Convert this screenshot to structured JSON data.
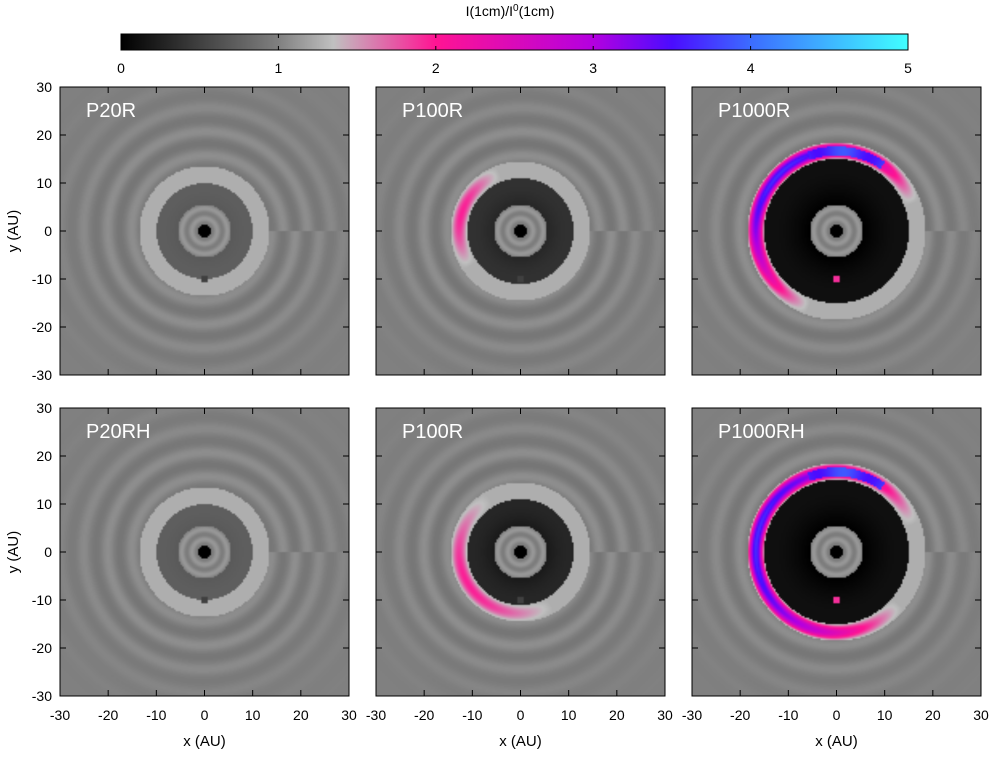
{
  "figure": {
    "colorbar": {
      "title": "I(1cm)/I",
      "title_sup": "0",
      "title_suffix": "(1cm)",
      "ticks": [
        "0",
        "1",
        "2",
        "3",
        "4",
        "5"
      ],
      "range": [
        0,
        5
      ],
      "stops": [
        {
          "v": 0,
          "color": "#000000"
        },
        {
          "v": 1,
          "color": "#808080"
        },
        {
          "v": 1.35,
          "color": "#c0c0c0"
        },
        {
          "v": 2,
          "color": "#ff1493"
        },
        {
          "v": 3,
          "color": "#b400e0"
        },
        {
          "v": 3.5,
          "color": "#4b0cff"
        },
        {
          "v": 4,
          "color": "#3c6cff"
        },
        {
          "v": 5,
          "color": "#40ffff"
        }
      ]
    },
    "axes": {
      "xlabel": "x (AU)",
      "ylabel": "y (AU)",
      "xlim": [
        -30,
        30
      ],
      "ylim": [
        -30,
        30
      ],
      "xticks": [
        "-30",
        "-20",
        "-10",
        "0",
        "10",
        "20",
        "30"
      ],
      "yticks": [
        "30",
        "20",
        "10",
        "0",
        "-10",
        "-20",
        "-30"
      ]
    }
  },
  "chart_data": [
    {
      "type": "heatmap",
      "title": "P20R",
      "xlabel": "",
      "ylabel": "y (AU)",
      "xlim": [
        -30,
        30
      ],
      "ylim": [
        -30,
        30
      ],
      "features": {
        "gap_outer_au": 10,
        "gap_depth": 0.7,
        "arc_max_ratio": 1.2,
        "arc_span_deg": [
          0,
          0
        ],
        "blue_patch": false,
        "planet_y_au": -10
      }
    },
    {
      "type": "heatmap",
      "title": "P100R",
      "xlabel": "",
      "ylabel": "",
      "xlim": [
        -30,
        30
      ],
      "ylim": [
        -30,
        30
      ],
      "features": {
        "gap_outer_au": 11,
        "gap_depth": 0.3,
        "arc_max_ratio": 2.0,
        "arc_span_deg": [
          110,
          215
        ],
        "blue_patch": false,
        "planet_y_au": -10
      }
    },
    {
      "type": "heatmap",
      "title": "P1000R",
      "xlabel": "",
      "ylabel": "",
      "xlim": [
        -30,
        30
      ],
      "ylim": [
        -30,
        30
      ],
      "features": {
        "gap_outer_au": 15,
        "gap_depth": 0.0,
        "arc_max_ratio": 3.8,
        "arc_span_deg": [
          20,
          250
        ],
        "blue_patch": true,
        "planet_y_au": -10
      }
    },
    {
      "type": "heatmap",
      "title": "P20RH",
      "xlabel": "x (AU)",
      "ylabel": "y (AU)",
      "xlim": [
        -30,
        30
      ],
      "ylim": [
        -30,
        30
      ],
      "features": {
        "gap_outer_au": 10,
        "gap_depth": 0.7,
        "arc_max_ratio": 1.2,
        "arc_span_deg": [
          0,
          0
        ],
        "blue_patch": false,
        "planet_y_au": -10
      }
    },
    {
      "type": "heatmap",
      "title": "P100R",
      "xlabel": "x (AU)",
      "ylabel": "",
      "xlim": [
        -30,
        30
      ],
      "ylim": [
        -30,
        30
      ],
      "features": {
        "gap_outer_au": 11,
        "gap_depth": 0.2,
        "arc_max_ratio": 2.0,
        "arc_span_deg": [
          120,
          300
        ],
        "blue_patch": false,
        "planet_y_au": -10
      }
    },
    {
      "type": "heatmap",
      "title": "P1000RH",
      "xlabel": "x (AU)",
      "ylabel": "",
      "xlim": [
        -30,
        30
      ],
      "ylim": [
        -30,
        30
      ],
      "features": {
        "gap_outer_au": 15,
        "gap_depth": 0.0,
        "arc_max_ratio": 3.8,
        "arc_span_deg": [
          20,
          320
        ],
        "blue_patch": true,
        "planet_y_au": -10
      }
    }
  ]
}
